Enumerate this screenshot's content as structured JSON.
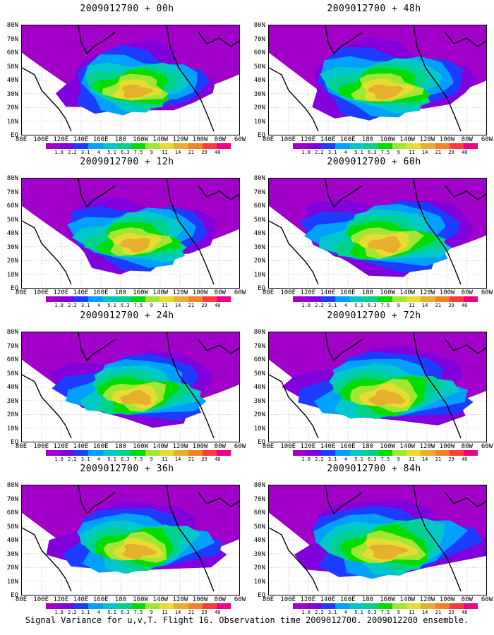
{
  "panels": [
    {
      "title": "2009012700 + 00h",
      "icon": "variance-map-00h",
      "intensity": 0.55
    },
    {
      "title": "2009012700 + 48h",
      "icon": "variance-map-48h",
      "intensity": 0.75
    },
    {
      "title": "2009012700 + 12h",
      "icon": "variance-map-12h",
      "intensity": 0.6
    },
    {
      "title": "2009012700 + 60h",
      "icon": "variance-map-60h",
      "intensity": 0.8
    },
    {
      "title": "2009012700 + 24h",
      "icon": "variance-map-24h",
      "intensity": 0.65
    },
    {
      "title": "2009012700 + 72h",
      "icon": "variance-map-72h",
      "intensity": 0.85
    },
    {
      "title": "2009012700 + 36h",
      "icon": "variance-map-36h",
      "intensity": 0.7
    },
    {
      "title": "2009012700 + 84h",
      "icon": "variance-map-84h",
      "intensity": 0.9
    }
  ],
  "y_labels": [
    "80N",
    "70N",
    "60N",
    "50N",
    "40N",
    "30N",
    "20N",
    "10N",
    "EQ"
  ],
  "x_labels": [
    "80E",
    "100E",
    "120E",
    "140E",
    "160E",
    "180",
    "160W",
    "140W",
    "120W",
    "100W",
    "80W",
    "60W"
  ],
  "colorbar": {
    "labels": [
      "1.8",
      "2.2",
      "3.1",
      "4",
      "5.1",
      "6.3",
      "7.5",
      "9",
      "11",
      "14",
      "21",
      "29",
      "40"
    ],
    "colors": [
      "#a000c8",
      "#8200dc",
      "#1e3cff",
      "#00a0ff",
      "#00c8c8",
      "#00d28c",
      "#00dc00",
      "#a0e632",
      "#e6dc32",
      "#e6af2d",
      "#f08228",
      "#fa3c3c",
      "#f00082"
    ]
  },
  "caption": "Signal Variance for u,v,T. Flight 16. Observation time 2009012700. 2009012200 ensemble."
}
